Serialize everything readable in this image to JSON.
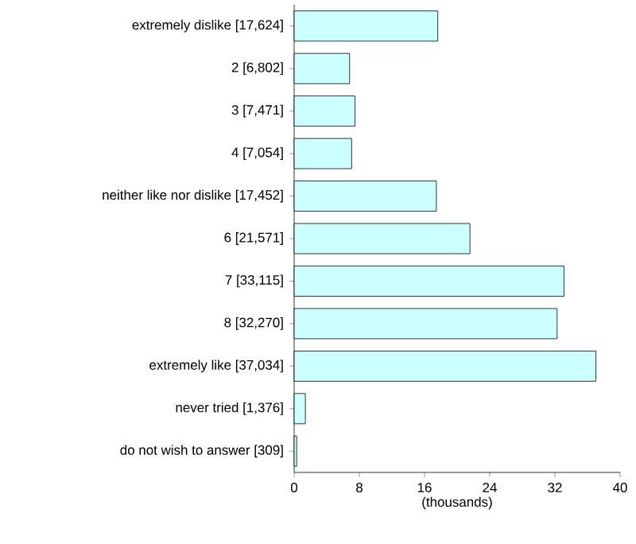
{
  "chart_data": {
    "type": "bar",
    "orientation": "horizontal",
    "xlabel": "(thousands)",
    "categories": [
      "extremely dislike [17,624]",
      "2 [6,802]",
      "3 [7,471]",
      "4 [7,054]",
      "neither like nor dislike [17,452]",
      "6 [21,571]",
      "7 [33,115]",
      "8 [32,270]",
      "extremely like [37,034]",
      "never tried [1,376]",
      "do not wish to answer [309]"
    ],
    "values": [
      17.624,
      6.802,
      7.471,
      7.054,
      17.452,
      21.571,
      33.115,
      32.27,
      37.034,
      1.376,
      0.309
    ],
    "color": "#ccffff",
    "xlim": [
      0,
      40
    ],
    "xticks": [
      0,
      8,
      16,
      24,
      32,
      40
    ]
  }
}
